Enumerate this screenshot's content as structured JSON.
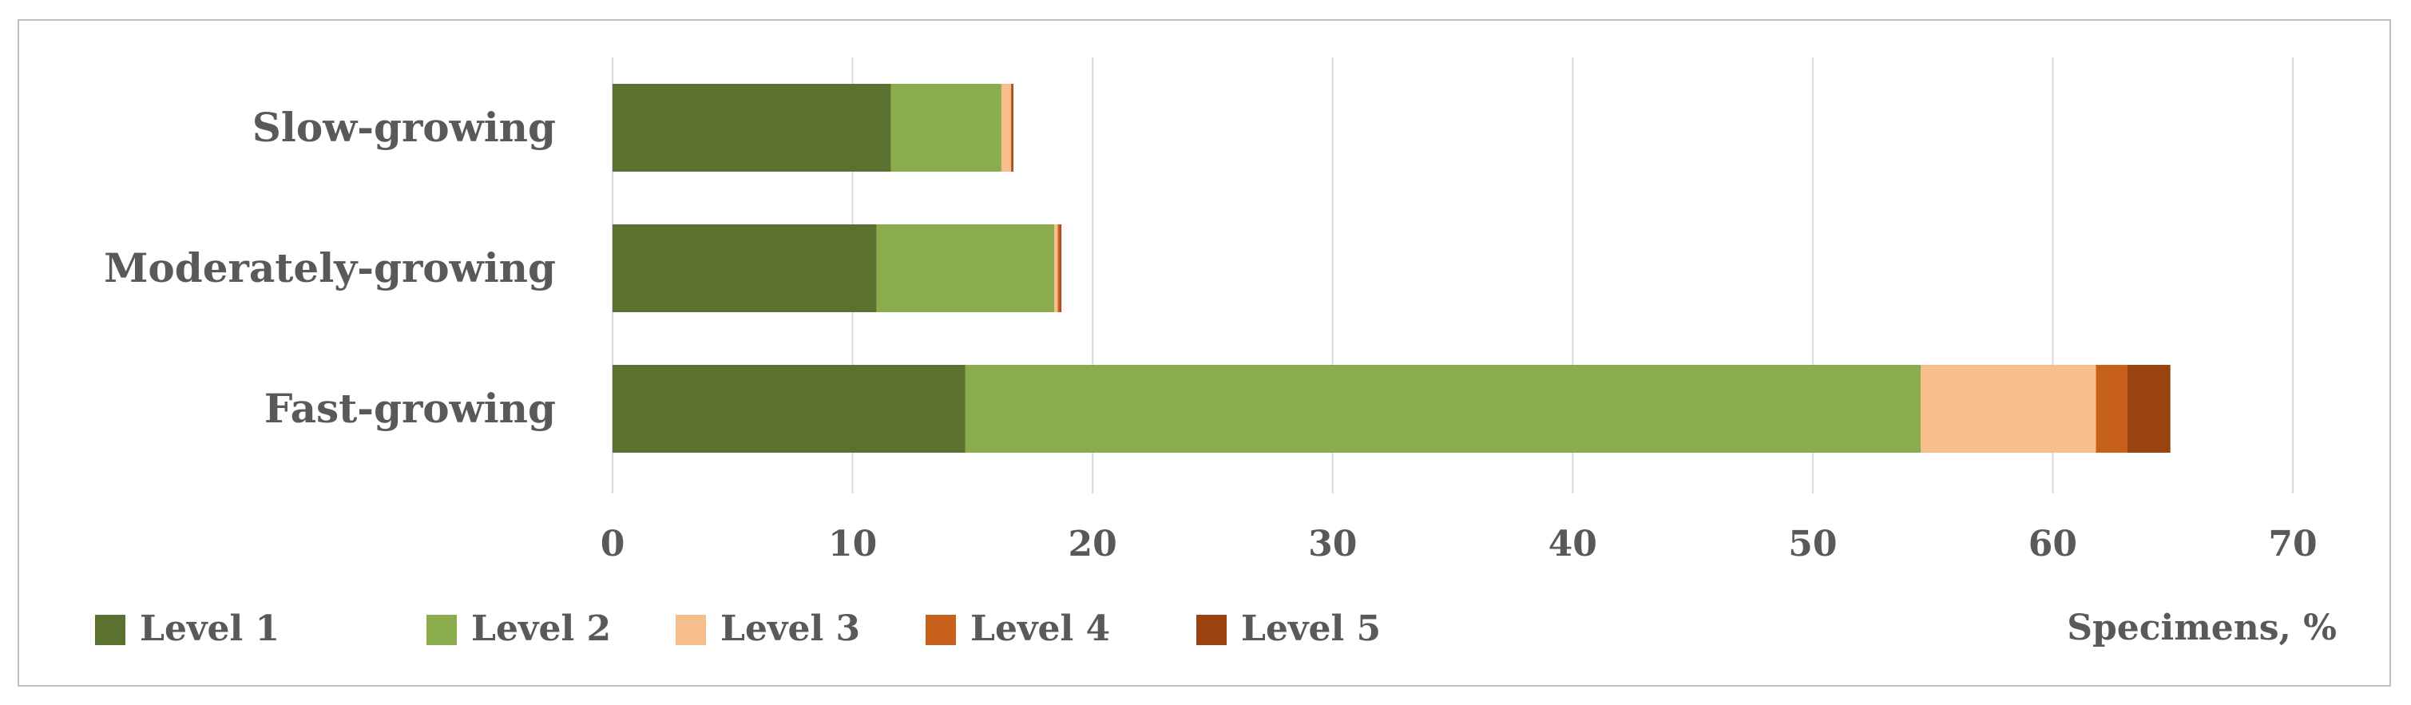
{
  "chart_data": {
    "type": "bar",
    "orientation": "horizontal",
    "stacked": true,
    "categories": [
      "Slow-growing",
      "Moderately-growing",
      "Fast-growing"
    ],
    "series": [
      {
        "name": "Level 1",
        "color": "#5a7130",
        "values": [
          11.6,
          11.0,
          14.7
        ]
      },
      {
        "name": "Level 2",
        "color": "#8aac4c",
        "values": [
          4.6,
          7.4,
          39.8
        ]
      },
      {
        "name": "Level 3",
        "color": "#f6bd8d",
        "values": [
          0.4,
          0.15,
          7.3
        ]
      },
      {
        "name": "Level 4",
        "color": "#c6601b",
        "values": [
          0.05,
          0.1,
          1.3
        ]
      },
      {
        "name": "Level 5",
        "color": "#9a4210",
        "values": [
          0.05,
          0.05,
          1.8
        ]
      }
    ],
    "xlim": [
      0,
      70
    ],
    "xticks": [
      "0",
      "10",
      "20",
      "30",
      "40",
      "50",
      "60",
      "70"
    ],
    "xticks_values": [
      0,
      10,
      20,
      30,
      40,
      50,
      60,
      70
    ],
    "xlabel": "Specimens, %",
    "grid": "vertical",
    "legend_position": "bottom-left"
  }
}
